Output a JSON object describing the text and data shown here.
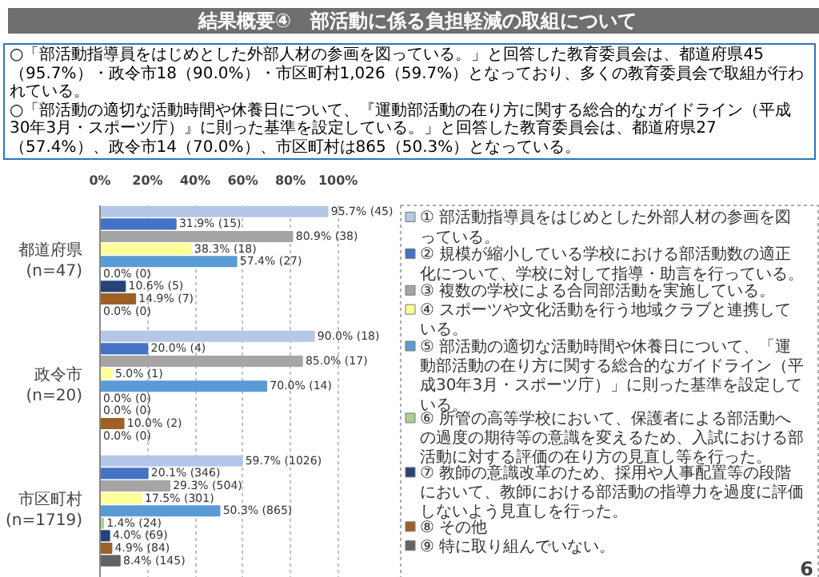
{
  "chart_data": {
    "type": "bar",
    "orientation": "horizontal",
    "title": "結果概要④　部活動に係る負担軽減の取組について",
    "subtitle": "○「部活動指導員をはじめとした外部人材の参画を図っている。」と回答した教育委員会は、都道府県45（95.7%）・政令市18（90.0%）・市区町村1,026（59.7%）となっており、多くの教育委員会で取組が行われている。\n○「部活動の適切な活動時間や休養日について、『運動部活動の在り方に関する総合的なガイドライン（平成30年3月・スポーツ庁）』に則った基準を設定している。」と回答した教育委員会は、都道府県27（57.4%）、政令市14（70.0%）、市区町村は865（50.3%）となっている。",
    "annotations": [
      "6"
    ],
    "categories": [
      "都道府県(n=47)",
      "政令市(n=20)",
      "市区町村(n=1719)"
    ],
    "xlim": [
      0,
      125
    ],
    "xticks": [
      {
        "value": 0,
        "label": "0%"
      },
      {
        "value": 20,
        "label": "20%"
      },
      {
        "value": 40,
        "label": "40%"
      },
      {
        "value": 60,
        "label": "60%"
      },
      {
        "value": 80,
        "label": "80%"
      },
      {
        "value": 100,
        "label": "100%"
      }
    ],
    "grid": "x",
    "legend": "right",
    "series": [
      {
        "name": "① 部活動指導員をはじめとした外部人材の参画を図っている。",
        "color": "#b4c7e7",
        "values": [
          95.7,
          90.0,
          59.7
        ],
        "value_labels": [
          "95.7% (45)",
          "90.0% (18)",
          "59.7% (1026)"
        ]
      },
      {
        "name": "② 規模が縮小している学校における部活動数の適正化について、学校に対して指導・助言を行っている。",
        "color": "#4472c4",
        "values": [
          31.9,
          20.0,
          20.1
        ],
        "value_labels": [
          "31.9% (15)",
          "20.0% (4)",
          "20.1% (346)"
        ]
      },
      {
        "name": "③ 複数の学校による合同部活動を実施している。",
        "color": "#a5a5a5",
        "values": [
          80.9,
          85.0,
          29.3
        ],
        "value_labels": [
          "80.9% (38)",
          "85.0% (17)",
          "29.3% (504)"
        ]
      },
      {
        "name": "④ スポーツや文化活動を行う地域クラブと連携している。",
        "color": "#ffff99",
        "values": [
          38.3,
          5.0,
          17.5
        ],
        "value_labels": [
          "38.3% (18)",
          "5.0% (1)",
          "17.5% (301)"
        ]
      },
      {
        "name": "⑤ 部活動の適切な活動時間や休養日について、「運動部活動の在り方に関する総合的なガイドライン（平成30年3月・スポーツ庁）」に則った基準を設定している。",
        "color": "#5b9bd5",
        "values": [
          57.4,
          70.0,
          50.3
        ],
        "value_labels": [
          "57.4% (27)",
          "70.0% (14)",
          "50.3% (865)"
        ]
      },
      {
        "name": "⑥ 所管の高等学校において、保護者による部活動への過度の期待等の意識を変えるため、入試における部活動に対する評価の在り方の見直し等を行った。",
        "color": "#a9d18e",
        "values": [
          0.0,
          0.0,
          1.4
        ],
        "value_labels": [
          "0.0% (0)",
          "0.0% (0)",
          "1.4% (24)"
        ]
      },
      {
        "name": "⑦ 教師の意識改革のため、採用や人事配置等の段階において、教師における部活動の指導力を過度に評価しないよう見直しを行った。",
        "color": "#264478",
        "values": [
          10.6,
          0.0,
          4.0
        ],
        "value_labels": [
          "10.6% (5)",
          "0.0% (0)",
          "4.0% (69)"
        ]
      },
      {
        "name": "⑧ その他",
        "color": "#9e6026",
        "values": [
          14.9,
          10.0,
          4.9
        ],
        "value_labels": [
          "14.9% (7)",
          "10.0% (2)",
          "4.9% (84)"
        ]
      },
      {
        "name": "⑨ 特に取り組んでいない。",
        "color": "#636363",
        "values": [
          0.0,
          0.0,
          8.4
        ],
        "value_labels": [
          "0.0% (0)",
          "0.0% (0)",
          "8.4% (145)"
        ]
      }
    ]
  }
}
